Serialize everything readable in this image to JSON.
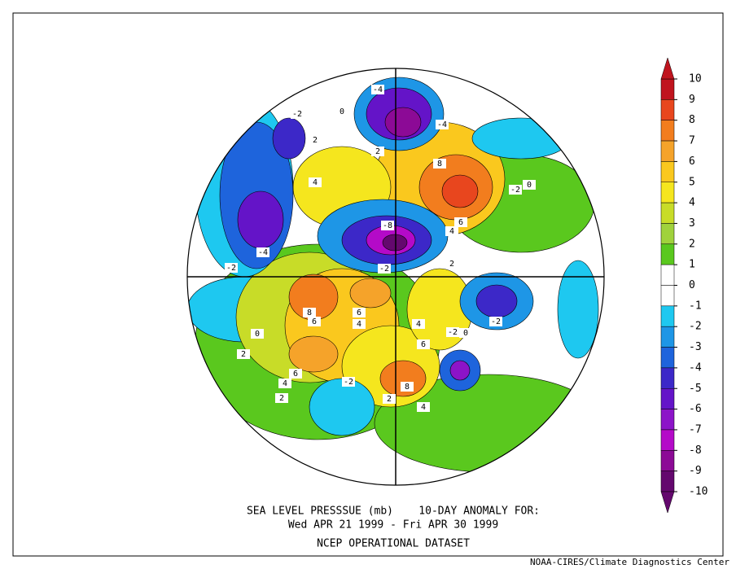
{
  "title": {
    "line1": "SEA LEVEL PRESSSUE (mb)    10-DAY ANOMALY FOR:",
    "line2": "Wed APR 21 1999 - Fri APR 30 1999",
    "line3": "NCEP OPERATIONAL DATASET"
  },
  "credit": "NOAA-CIRES/Climate Diagnostics Center",
  "colorbar": {
    "ticks": [
      10,
      9,
      8,
      7,
      6,
      5,
      4,
      3,
      2,
      1,
      0,
      -1,
      -2,
      -3,
      -4,
      -5,
      -6,
      -7,
      -8,
      -9,
      -10
    ],
    "colors": [
      "#c0141e",
      "#e8461e",
      "#f27d1e",
      "#f5a32a",
      "#fac81e",
      "#f5e61e",
      "#c8dc28",
      "#a0d23c",
      "#5ac81e",
      "#ffffff",
      "#ffffff",
      "#1ec8f0",
      "#1e96e6",
      "#1e64dc",
      "#3c28c8",
      "#6414c8",
      "#8c14c8",
      "#b40ac8",
      "#8c0a96",
      "#64086e"
    ]
  },
  "contour_labels": [
    "-4",
    "-2",
    "0",
    "-4",
    "2",
    "2",
    "4",
    "8",
    "6",
    "4",
    "-2",
    "-4",
    "-8",
    "-2",
    "8",
    "6",
    "6",
    "4",
    "0",
    "2",
    "6",
    "4",
    "2",
    "-2",
    "-2",
    "0",
    "4",
    "6",
    "8",
    "-2",
    "2",
    "4",
    "-2",
    "0",
    "2"
  ]
}
